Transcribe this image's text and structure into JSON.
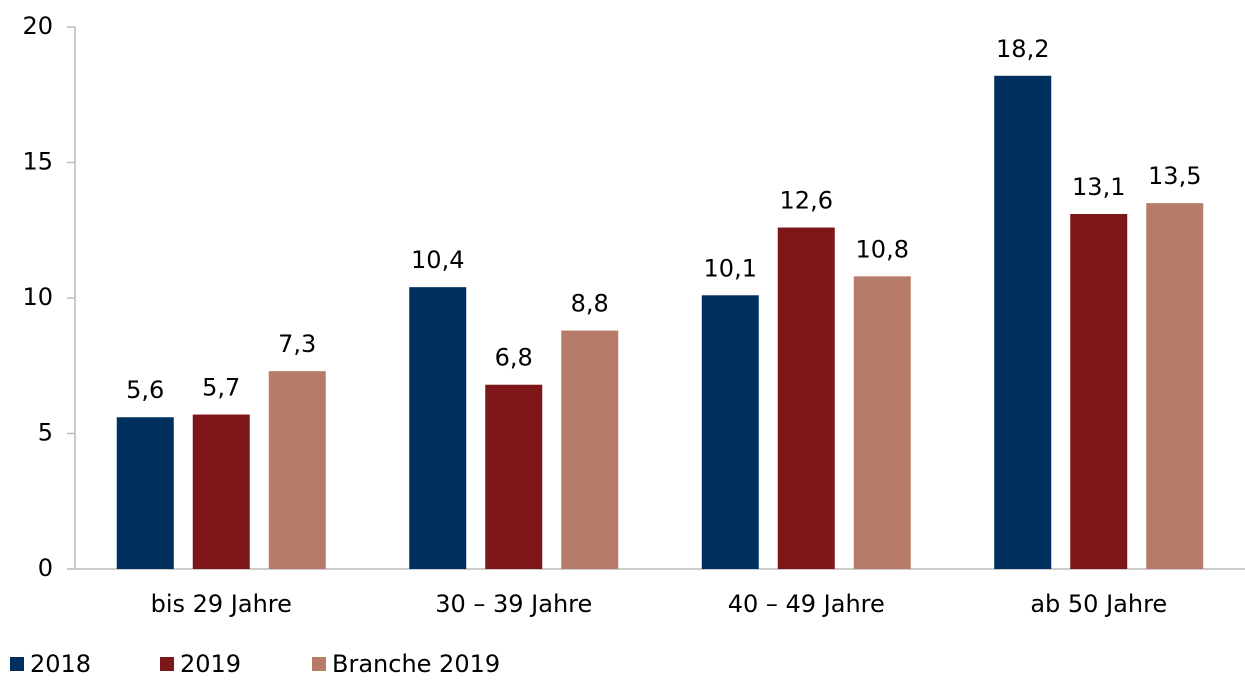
{
  "chart_data": {
    "type": "bar",
    "categories": [
      "bis 29 Jahre",
      "30 – 39 Jahre",
      "40 – 49 Jahre",
      "ab 50 Jahre"
    ],
    "series": [
      {
        "name": "2018",
        "color": "#00305e",
        "values": [
          5.6,
          10.4,
          10.1,
          18.2
        ],
        "value_labels": [
          "5,6",
          "10,4",
          "10,1",
          "18,2"
        ]
      },
      {
        "name": "2019",
        "color": "#7d1618",
        "values": [
          5.7,
          6.8,
          12.6,
          13.1
        ],
        "value_labels": [
          "5,7",
          "6,8",
          "12,6",
          "13,1"
        ]
      },
      {
        "name": "Branche 2019",
        "color": "#b67b69",
        "values": [
          7.3,
          8.8,
          10.8,
          13.5
        ],
        "value_labels": [
          "7,3",
          "8,8",
          "10,8",
          "13,5"
        ]
      }
    ],
    "ylim": [
      0,
      20
    ],
    "yticks": [
      0,
      5,
      10,
      15,
      20
    ],
    "legend": "bottom-left"
  }
}
